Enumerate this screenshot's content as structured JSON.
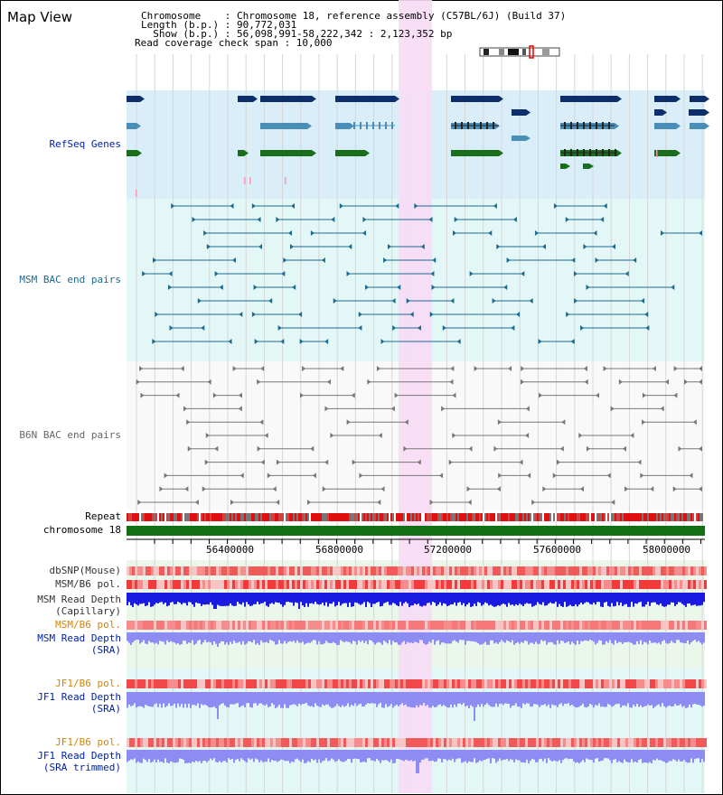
{
  "header": {
    "title": "Map View",
    "chromosome_line": "Chromosome    : Chromosome 18, reference assembly (C57BL/6J) (Build 37)",
    "length_line": "Length (b.p.) : 90,772,031",
    "show_line": "  Show (b.p.) : 56,098,991-58,222,342 : 2,123,352 bp",
    "coverage_line": "Read coverage check span : 10,000"
  },
  "tracks": {
    "refseq": "RefSeq Genes",
    "msm_bac": "MSM BAC end pairs",
    "b6n_bac": "B6N BAC end pairs",
    "repeat": "Repeat",
    "chromosome": "chromosome 18",
    "dbsnp": "dbSNP(Mouse)",
    "msm_b6_pol": "MSM/B6 pol.",
    "msm_depth_cap_1": "MSM Read Depth",
    "msm_depth_cap_2": "(Capillary)",
    "msm_b6_pol_2": "MSM/B6 pol.",
    "msm_depth_sra_1": "MSM Read Depth",
    "msm_depth_sra_2": "(SRA)",
    "jf1_b6_pol": "JF1/B6 pol.",
    "jf1_depth_1": "JF1 Read Depth",
    "jf1_depth_2": "(SRA)",
    "jf1_b6_pol_2": "JF1/B6 pol.",
    "jf1_trim_1": "JF1 Read Depth",
    "jf1_trim_2": "(SRA trimmed)"
  },
  "axis": {
    "ticks": [
      "56400000",
      "56800000",
      "57200000",
      "57600000",
      "58000000"
    ]
  },
  "colors": {
    "refseq_bg": "#d9eef9",
    "msm_bg": "#e3f7f7",
    "b6n_bg": "#f9f9f9",
    "highlight": "#f7dcf5",
    "gene_dark": "#0d2e6b",
    "gene_mid": "#4a8db6",
    "gene_green": "#1a6d1a",
    "msm_line": "#1b6a8f",
    "b6n_line": "#777777",
    "chrom_bar": "#136f13",
    "depth_blue": "#1a1ae0",
    "depth_light": "#8d8cf2",
    "pol_red": "#f25a5a",
    "label_blue": "#0022aa",
    "label_orange": "#d58400"
  }
}
